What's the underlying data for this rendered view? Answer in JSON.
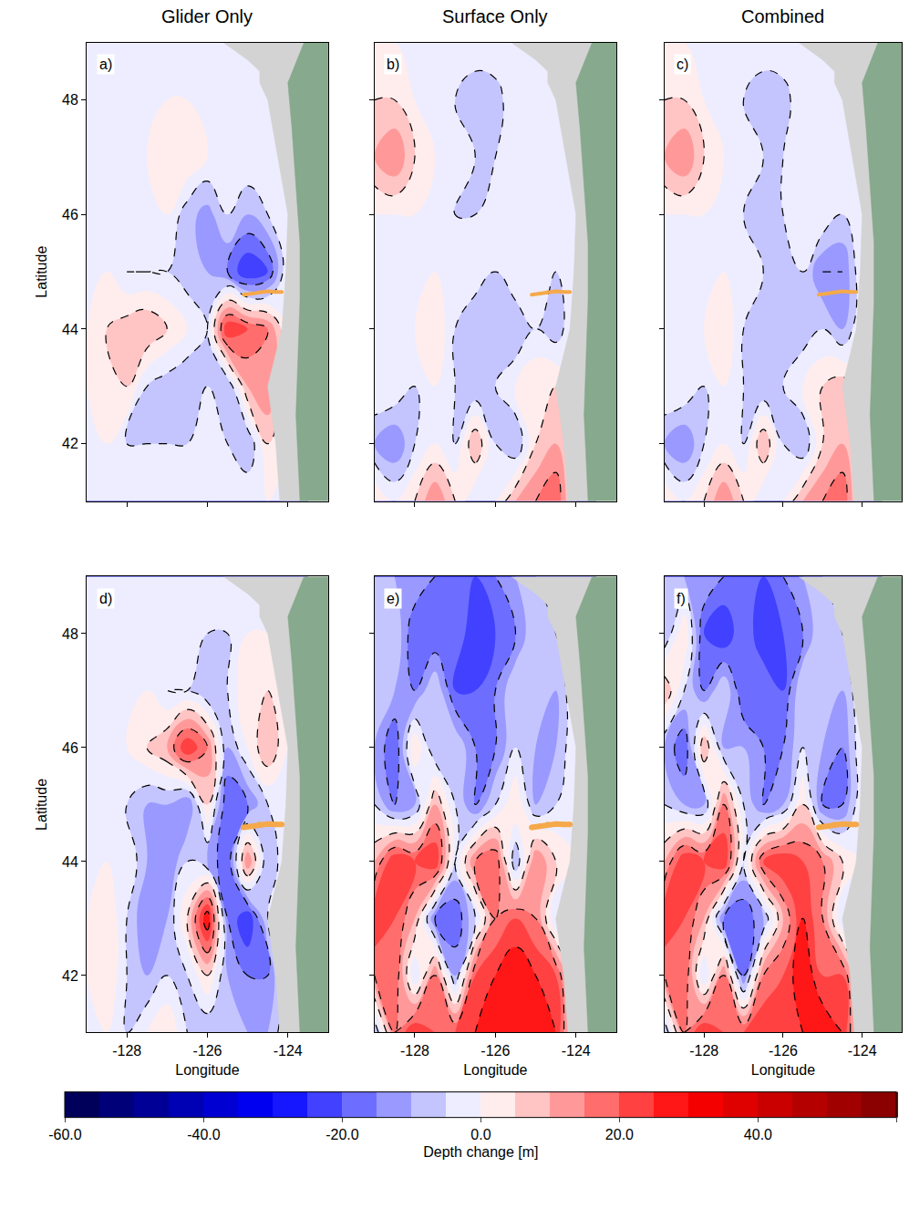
{
  "chart_data": [
    {
      "type": "contour",
      "label": "a)",
      "title": "Glider Only",
      "ylabel": "Latitude",
      "tick_labels": "y",
      "x": [
        -129,
        -128.5,
        -128,
        -127.5,
        -127,
        -126.5,
        -126,
        -125.5,
        -125,
        -124.5,
        -124,
        -123.5
      ],
      "y": [
        41,
        42,
        43,
        44,
        45,
        46,
        47,
        48,
        49
      ],
      "z": [
        [
          0,
          0,
          0,
          0,
          0,
          0,
          0,
          0,
          0,
          0,
          0,
          0
        ],
        [
          0,
          0,
          -5,
          -5,
          -5,
          -5,
          0,
          -5,
          -10,
          5,
          0,
          0
        ],
        [
          0,
          5,
          5,
          -5,
          -8,
          -10,
          -5,
          -10,
          10,
          15,
          0,
          0
        ],
        [
          0,
          5,
          8,
          10,
          5,
          0,
          -5,
          25,
          20,
          15,
          0,
          0
        ],
        [
          0,
          0,
          -5,
          -5,
          -5,
          -8,
          -10,
          -15,
          -25,
          -20,
          0,
          0
        ],
        [
          0,
          0,
          0,
          -3,
          0,
          -8,
          -12,
          -5,
          -10,
          -5,
          0,
          0
        ],
        [
          0,
          0,
          0,
          0,
          5,
          5,
          0,
          0,
          0,
          0,
          0,
          0
        ],
        [
          0,
          0,
          0,
          0,
          0,
          0,
          0,
          0,
          0,
          0,
          0,
          0
        ],
        [
          0,
          0,
          0,
          0,
          0,
          0,
          0,
          0,
          0,
          0,
          0,
          0
        ]
      ],
      "xlim": [
        -129,
        -123
      ],
      "ylim": [
        41,
        49
      ],
      "xticks": [
        -128,
        -126,
        -124
      ],
      "yticks": [
        42,
        44,
        46,
        48
      ]
    },
    {
      "type": "contour",
      "label": "b)",
      "title": "Surface Only",
      "tick_labels": false,
      "x": [
        -129,
        -128.5,
        -128,
        -127.5,
        -127,
        -126.5,
        -126,
        -125.5,
        -125,
        -124.5,
        -124,
        -123.5
      ],
      "y": [
        41,
        42,
        43,
        44,
        45,
        46,
        47,
        48,
        49
      ],
      "z": [
        [
          5,
          0,
          5,
          15,
          5,
          -5,
          0,
          10,
          15,
          20,
          0,
          0
        ],
        [
          -10,
          -15,
          -5,
          0,
          -5,
          10,
          -5,
          -10,
          5,
          10,
          0,
          0
        ],
        [
          0,
          0,
          -5,
          0,
          -5,
          -10,
          -5,
          0,
          5,
          5,
          0,
          0
        ],
        [
          0,
          0,
          0,
          5,
          -5,
          -8,
          -5,
          -10,
          -5,
          -8,
          0,
          0
        ],
        [
          0,
          0,
          0,
          0,
          0,
          -3,
          -5,
          0,
          0,
          -5,
          0,
          0
        ],
        [
          0,
          0,
          0,
          0,
          -5,
          -5,
          -3,
          0,
          0,
          -3,
          0,
          0
        ],
        [
          10,
          15,
          5,
          0,
          0,
          -5,
          -5,
          0,
          0,
          0,
          0,
          0
        ],
        [
          5,
          5,
          0,
          0,
          -5,
          -10,
          -8,
          0,
          0,
          0,
          0,
          0
        ],
        [
          0,
          0,
          0,
          0,
          0,
          0,
          0,
          0,
          0,
          0,
          0,
          0
        ]
      ],
      "xlim": [
        -129,
        -123
      ],
      "ylim": [
        41,
        49
      ],
      "xticks": [
        -128,
        -126,
        -124
      ],
      "yticks": [
        42,
        44,
        46,
        48
      ]
    },
    {
      "type": "contour",
      "label": "c)",
      "title": "Combined",
      "tick_labels": false,
      "x": [
        -129,
        -128.5,
        -128,
        -127.5,
        -127,
        -126.5,
        -126,
        -125.5,
        -125,
        -124.5,
        -124,
        -123.5
      ],
      "y": [
        41,
        42,
        43,
        44,
        45,
        46,
        47,
        48,
        49
      ],
      "z": [
        [
          5,
          0,
          5,
          15,
          5,
          -5,
          0,
          10,
          15,
          20,
          0,
          0
        ],
        [
          -10,
          -15,
          -5,
          0,
          -5,
          10,
          -5,
          -10,
          5,
          10,
          0,
          0
        ],
        [
          0,
          0,
          -5,
          0,
          -5,
          -10,
          -5,
          0,
          5,
          8,
          0,
          0
        ],
        [
          0,
          0,
          0,
          5,
          -5,
          -10,
          -5,
          -8,
          -5,
          -10,
          0,
          0
        ],
        [
          0,
          0,
          0,
          0,
          0,
          -5,
          -8,
          -5,
          -15,
          -15,
          0,
          0
        ],
        [
          0,
          0,
          0,
          0,
          -5,
          -5,
          -5,
          0,
          0,
          -5,
          0,
          0
        ],
        [
          10,
          15,
          5,
          0,
          0,
          -5,
          -5,
          0,
          0,
          0,
          0,
          0
        ],
        [
          5,
          5,
          0,
          0,
          -5,
          -10,
          -8,
          0,
          -5,
          0,
          0,
          0
        ],
        [
          0,
          0,
          0,
          0,
          0,
          0,
          0,
          0,
          0,
          0,
          0,
          0
        ]
      ],
      "xlim": [
        -129,
        -123
      ],
      "ylim": [
        41,
        49
      ],
      "xticks": [
        -128,
        -126,
        -124
      ],
      "yticks": [
        42,
        44,
        46,
        48
      ]
    },
    {
      "type": "contour",
      "label": "d)",
      "xlabel": "Longitude",
      "ylabel": "Latitude",
      "tick_labels": true,
      "x": [
        -129,
        -128.5,
        -128,
        -127.5,
        -127,
        -126.5,
        -126,
        -125.5,
        -125,
        -124.5,
        -124,
        -123.5
      ],
      "y": [
        41,
        42,
        43,
        44,
        45,
        46,
        47,
        48,
        49
      ],
      "z": [
        [
          0,
          0,
          -5,
          0,
          5,
          -5,
          -10,
          -5,
          -10,
          -10,
          0,
          0
        ],
        [
          0,
          5,
          -5,
          -10,
          -5,
          -5,
          5,
          -10,
          -15,
          -15,
          0,
          0
        ],
        [
          0,
          5,
          -5,
          -15,
          -10,
          5,
          30,
          -15,
          -25,
          -5,
          0,
          0
        ],
        [
          0,
          0,
          0,
          -10,
          -15,
          -5,
          -10,
          -20,
          15,
          -10,
          0,
          0
        ],
        [
          0,
          0,
          -5,
          -10,
          -10,
          -15,
          5,
          -20,
          -15,
          -5,
          0,
          0
        ],
        [
          0,
          0,
          0,
          5,
          10,
          25,
          15,
          -10,
          0,
          10,
          0,
          0
        ],
        [
          0,
          0,
          0,
          0,
          -5,
          -5,
          -10,
          -5,
          5,
          5,
          0,
          0
        ],
        [
          0,
          0,
          0,
          0,
          0,
          0,
          -5,
          -5,
          0,
          0,
          0,
          0
        ],
        [
          0,
          0,
          0,
          0,
          0,
          0,
          0,
          0,
          0,
          0,
          0,
          0
        ]
      ],
      "xlim": [
        -129,
        -123
      ],
      "ylim": [
        41,
        49
      ],
      "xticks": [
        -128,
        -126,
        -124
      ],
      "yticks": [
        42,
        44,
        46,
        48
      ]
    },
    {
      "type": "contour",
      "label": "e)",
      "xlabel": "Longitude",
      "tick_labels": "x",
      "x": [
        -129,
        -128.5,
        -128,
        -127.5,
        -127,
        -126.5,
        -126,
        -125.5,
        -125,
        -124.5,
        -124,
        -123.5
      ],
      "y": [
        41,
        42,
        43,
        44,
        45,
        46,
        47,
        48,
        49
      ],
      "z": [
        [
          -10,
          15,
          25,
          20,
          20,
          25,
          30,
          25,
          30,
          25,
          0,
          0
        ],
        [
          15,
          20,
          -5,
          15,
          -10,
          20,
          25,
          30,
          25,
          20,
          0,
          0
        ],
        [
          25,
          20,
          10,
          -15,
          -20,
          -5,
          15,
          20,
          15,
          -5,
          0,
          0
        ],
        [
          10,
          25,
          20,
          25,
          -5,
          15,
          20,
          -10,
          15,
          5,
          0,
          0
        ],
        [
          -5,
          -15,
          -10,
          10,
          -5,
          -15,
          -5,
          5,
          -10,
          -5,
          0,
          0
        ],
        [
          -10,
          -20,
          5,
          -10,
          -5,
          -15,
          -15,
          -5,
          -10,
          -10,
          0,
          0
        ],
        [
          -5,
          -10,
          -15,
          -5,
          -20,
          -20,
          -15,
          -5,
          -5,
          -10,
          0,
          0
        ],
        [
          -10,
          -5,
          -20,
          -20,
          -15,
          -25,
          -20,
          -15,
          -5,
          -5,
          0,
          0
        ],
        [
          -5,
          -10,
          -10,
          -15,
          -15,
          -20,
          -15,
          -10,
          -5,
          0,
          0,
          0
        ]
      ],
      "xlim": [
        -129,
        -123
      ],
      "ylim": [
        41,
        49
      ],
      "xticks": [
        -128,
        -126,
        -124
      ],
      "yticks": [
        42,
        44,
        46,
        48
      ]
    },
    {
      "type": "contour",
      "label": "f)",
      "xlabel": "Longitude",
      "tick_labels": "x",
      "x": [
        -129,
        -128.5,
        -128,
        -127.5,
        -127,
        -126.5,
        -126,
        -125.5,
        -125,
        -124.5,
        -124,
        -123.5
      ],
      "y": [
        41,
        42,
        43,
        44,
        45,
        46,
        47,
        48,
        49
      ],
      "z": [
        [
          -10,
          15,
          25,
          20,
          20,
          25,
          25,
          25,
          30,
          25,
          0,
          0
        ],
        [
          15,
          20,
          -5,
          15,
          -15,
          15,
          20,
          30,
          20,
          20,
          0,
          0
        ],
        [
          25,
          20,
          10,
          -15,
          -20,
          -10,
          10,
          25,
          15,
          -5,
          0,
          0
        ],
        [
          10,
          25,
          20,
          25,
          -5,
          20,
          25,
          20,
          15,
          5,
          0,
          0
        ],
        [
          -5,
          -10,
          -10,
          15,
          -5,
          -15,
          -10,
          5,
          -15,
          -15,
          0,
          0
        ],
        [
          -10,
          -20,
          10,
          -10,
          -10,
          -15,
          -15,
          -5,
          -10,
          -15,
          0,
          0
        ],
        [
          10,
          -5,
          -15,
          -5,
          -20,
          -15,
          -20,
          -5,
          -5,
          -10,
          0,
          0
        ],
        [
          -10,
          5,
          -20,
          -25,
          -15,
          -25,
          -20,
          -15,
          -5,
          -5,
          0,
          0
        ],
        [
          -5,
          -10,
          -10,
          -15,
          -15,
          -20,
          -15,
          -10,
          -5,
          0,
          0,
          0
        ]
      ],
      "xlim": [
        -129,
        -123
      ],
      "ylim": [
        41,
        49
      ],
      "xticks": [
        -128,
        -126,
        -124
      ],
      "yticks": [
        42,
        44,
        46,
        48
      ]
    }
  ],
  "colorbar": {
    "title": "Depth change [m]",
    "range": [
      -60,
      60
    ],
    "levels": {
      "start": -60,
      "end": 60,
      "size": 5
    },
    "ticks": [
      {
        "value": -60,
        "label": "-60.0"
      },
      {
        "value": -40,
        "label": "-40.0"
      },
      {
        "value": -20,
        "label": "-20.0"
      },
      {
        "value": 0,
        "label": "0.0"
      },
      {
        "value": 20,
        "label": "20.0"
      },
      {
        "value": 40,
        "label": "40.0"
      },
      {
        "value": 60,
        "label": "60.0"
      }
    ]
  },
  "line_levels": {
    "start": -55,
    "end": 55,
    "size": 10,
    "line_style": "dash",
    "color": "#000000"
  },
  "land": [
    {
      "color": "#d3d3d3",
      "lon": [
        -125.6,
        -125.0,
        -124.7,
        -124.7,
        -124.5,
        -124.25,
        -124.0,
        -124.05,
        -124.15,
        -124.5,
        -124.3,
        -124.2,
        -123.0,
        -123.0
      ],
      "lat": [
        49.0,
        48.7,
        48.5,
        48.3,
        48.0,
        47.0,
        46.0,
        45.0,
        44.0,
        43.0,
        42.0,
        41.0,
        41.0,
        49.0
      ]
    },
    {
      "color": "#87a98d",
      "lon": [
        -123.0,
        -123.6,
        -124.0,
        -123.9,
        -123.8,
        -123.7,
        -123.7,
        -123.75,
        -123.8,
        -123.7,
        -123.0
      ],
      "lat": [
        49.0,
        49.0,
        48.3,
        47.5,
        46.5,
        45.5,
        44.5,
        43.5,
        42.5,
        41.0,
        41.0
      ]
    }
  ],
  "glider_track": {
    "color": "#f5a94a",
    "lon": [
      -125.1,
      -124.9,
      -124.7,
      -124.5,
      -124.3,
      -124.15
    ],
    "lat": [
      44.6,
      44.62,
      44.65,
      44.66,
      44.65,
      44.65
    ]
  }
}
